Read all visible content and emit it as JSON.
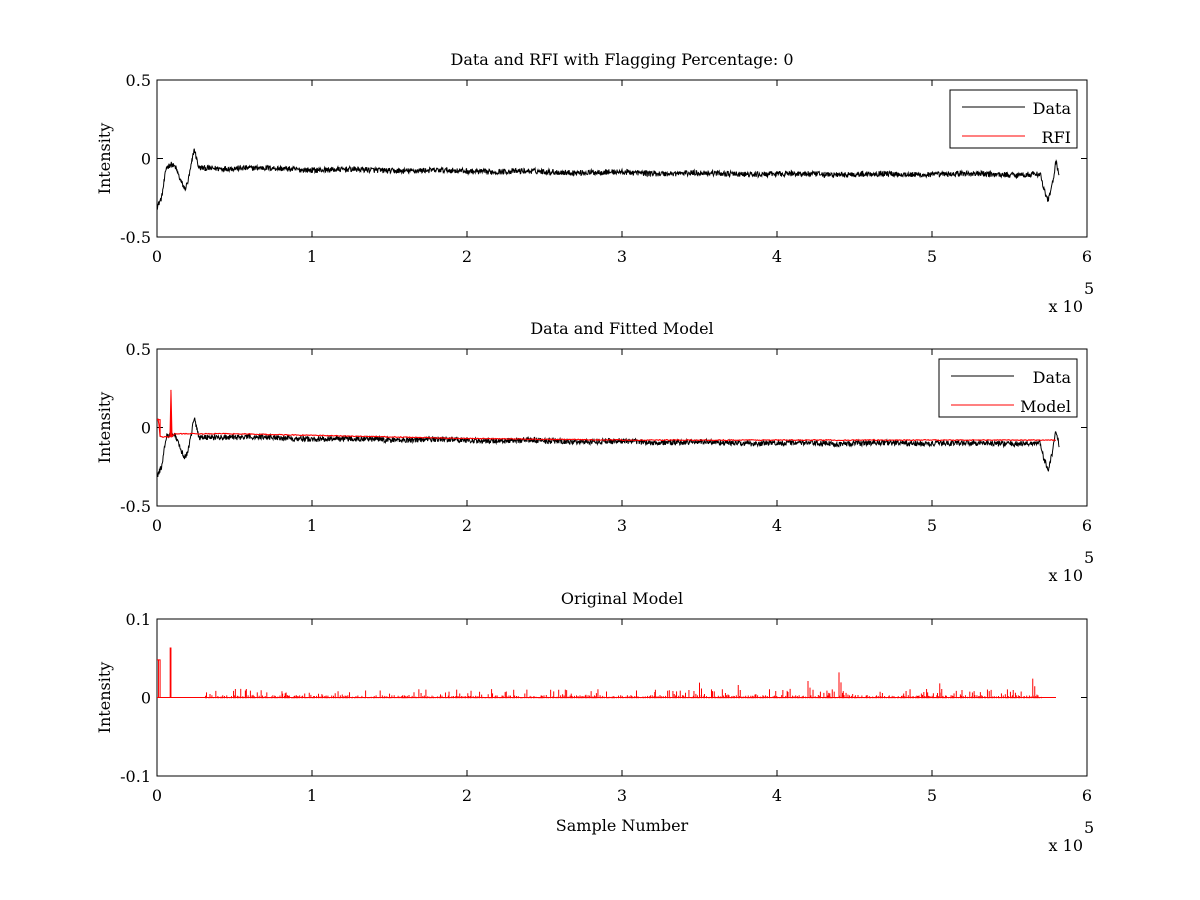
{
  "chart_data": [
    {
      "type": "line",
      "title": "Data and RFI with Flagging Percentage: 0",
      "xlabel": "",
      "ylabel": "Intensity",
      "xlim": [
        0,
        600000
      ],
      "ylim": [
        -0.5,
        0.5
      ],
      "xticks": [
        "0",
        "1",
        "2",
        "3",
        "4",
        "5",
        "6"
      ],
      "yticks": [
        "0.5",
        "0",
        "-0.5"
      ],
      "x_exponent_label": "x 10",
      "x_exponent_power": "5",
      "legend_position": "top-right",
      "series": [
        {
          "name": "Data",
          "color": "#000000",
          "style": "noisy",
          "x": [
            0,
            3000,
            6000,
            9000,
            12000,
            15000,
            18000,
            20000,
            22000,
            24000,
            27000,
            30000,
            50000,
            100000,
            200000,
            300000,
            400000,
            500000,
            560000,
            570000,
            572000,
            575000,
            578000,
            580000,
            582000
          ],
          "y": [
            -0.31,
            -0.25,
            -0.06,
            -0.04,
            -0.06,
            -0.14,
            -0.2,
            -0.15,
            -0.05,
            0.06,
            -0.06,
            -0.06,
            -0.06,
            -0.07,
            -0.08,
            -0.09,
            -0.1,
            -0.1,
            -0.1,
            -0.1,
            -0.2,
            -0.27,
            -0.15,
            -0.02,
            -0.12
          ],
          "noise": 0.018
        },
        {
          "name": "RFI",
          "color": "#ff0000",
          "style": "none",
          "x": [],
          "y": []
        }
      ]
    },
    {
      "type": "line",
      "title": "Data and Fitted Model",
      "xlabel": "",
      "ylabel": "Intensity",
      "xlim": [
        0,
        600000
      ],
      "ylim": [
        -0.5,
        0.5
      ],
      "xticks": [
        "0",
        "1",
        "2",
        "3",
        "4",
        "5",
        "6"
      ],
      "yticks": [
        "0.5",
        "0",
        "-0.5"
      ],
      "x_exponent_label": "x 10",
      "x_exponent_power": "5",
      "legend_position": "top-right",
      "series": [
        {
          "name": "Data",
          "color": "#000000",
          "style": "noisy",
          "x": [
            0,
            3000,
            6000,
            9000,
            12000,
            15000,
            18000,
            20000,
            22000,
            24000,
            27000,
            30000,
            50000,
            100000,
            200000,
            300000,
            400000,
            500000,
            560000,
            570000,
            572000,
            575000,
            578000,
            580000,
            582000
          ],
          "y": [
            -0.31,
            -0.25,
            -0.06,
            -0.04,
            -0.06,
            -0.14,
            -0.2,
            -0.15,
            -0.05,
            0.06,
            -0.06,
            -0.06,
            -0.06,
            -0.07,
            -0.08,
            -0.09,
            -0.1,
            -0.1,
            -0.1,
            -0.1,
            -0.2,
            -0.27,
            -0.15,
            -0.02,
            -0.12
          ],
          "noise": 0.018
        },
        {
          "name": "Model",
          "color": "#ff0000",
          "style": "line",
          "x": [
            0,
            1000,
            2000,
            3000,
            4000,
            5500,
            7000,
            8500,
            9000,
            9500,
            11000,
            20000,
            50000,
            100000,
            200000,
            300000,
            400000,
            500000,
            580000
          ],
          "y": [
            0.05,
            0.05,
            -0.06,
            -0.06,
            -0.06,
            -0.06,
            -0.06,
            -0.06,
            0.24,
            -0.06,
            -0.04,
            -0.04,
            -0.04,
            -0.05,
            -0.07,
            -0.08,
            -0.08,
            -0.08,
            -0.08
          ],
          "noise": 0.003
        }
      ]
    },
    {
      "type": "line",
      "title": "Original Model",
      "xlabel": "Sample Number",
      "ylabel": "Intensity",
      "xlim": [
        0,
        600000
      ],
      "ylim": [
        -0.1,
        0.1
      ],
      "xticks": [
        "0",
        "1",
        "2",
        "3",
        "4",
        "5",
        "6"
      ],
      "yticks": [
        "0.1",
        "0",
        "-0.1"
      ],
      "x_exponent_label": "x 10",
      "x_exponent_power": "5",
      "legend_position": "none",
      "series": [
        {
          "name": "",
          "color": "#ff0000",
          "style": "spikes",
          "x": [
            0,
            2000,
            2100,
            8500,
            8600,
            9000,
            30000,
            580000
          ],
          "y": [
            0.048,
            0.048,
            0,
            0,
            0.063,
            0,
            0,
            0
          ],
          "spike_range": [
            30000,
            570000
          ],
          "spike_scale": 0.011,
          "big_spikes": [
            [
              440000,
              0.032
            ],
            [
              565000,
              0.024
            ],
            [
              350000,
              0.019
            ],
            [
              420000,
              0.021
            ],
            [
              505000,
              0.018
            ],
            [
              375000,
              0.016
            ]
          ]
        }
      ]
    }
  ]
}
